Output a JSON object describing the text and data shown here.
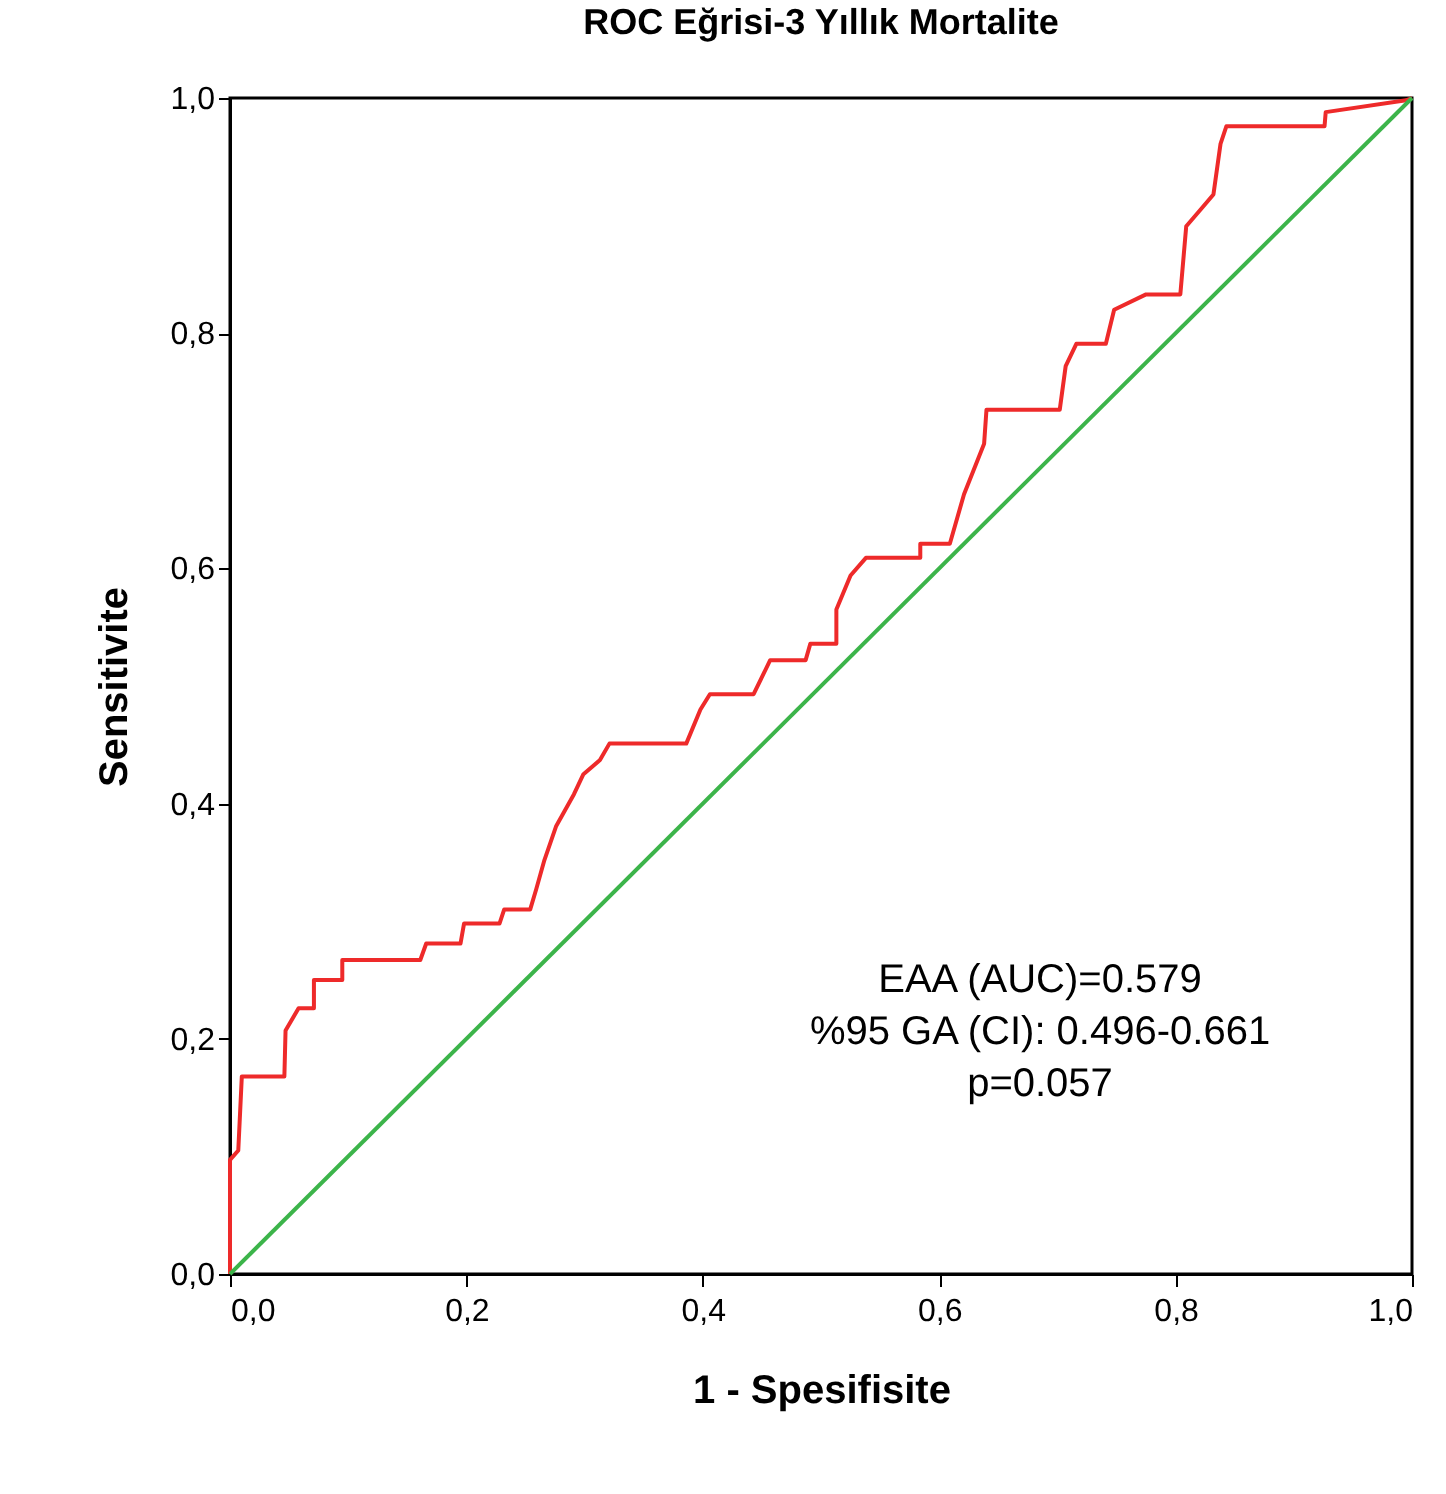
{
  "chart_data": {
    "type": "line",
    "title": "ROC Eğrisi-3 Yıllık Mortalite",
    "xlabel": "1 - Spesifisite",
    "ylabel": "Sensitivite",
    "xlim": [
      0,
      1
    ],
    "ylim": [
      0,
      1
    ],
    "xticks": [
      {
        "value": 0,
        "label": "0,0"
      },
      {
        "value": 0.2,
        "label": "0,2"
      },
      {
        "value": 0.4,
        "label": "0,4"
      },
      {
        "value": 0.6,
        "label": "0,6"
      },
      {
        "value": 0.8,
        "label": "0,8"
      },
      {
        "value": 1,
        "label": "1,0"
      }
    ],
    "yticks": [
      {
        "value": 0,
        "label": "0,0"
      },
      {
        "value": 0.2,
        "label": "0,2"
      },
      {
        "value": 0.4,
        "label": "0,4"
      },
      {
        "value": 0.6,
        "label": "0,6"
      },
      {
        "value": 0.8,
        "label": "0,8"
      },
      {
        "value": 1,
        "label": "1,0"
      }
    ],
    "grid": false,
    "legend": false,
    "marker": "none",
    "line_style": "solid",
    "series": [
      {
        "color": "#ee2a2a",
        "x": [
          0,
          0,
          0.007,
          0.01,
          0.046,
          0.047,
          0.058,
          0.071,
          0.071,
          0.095,
          0.095,
          0.161,
          0.166,
          0.195,
          0.198,
          0.228,
          0.232,
          0.254,
          0.259,
          0.266,
          0.276,
          0.291,
          0.299,
          0.313,
          0.321,
          0.386,
          0.398,
          0.406,
          0.443,
          0.457,
          0.487,
          0.491,
          0.513,
          0.513,
          0.525,
          0.538,
          0.584,
          0.584,
          0.609,
          0.621,
          0.638,
          0.64,
          0.702,
          0.707,
          0.716,
          0.741,
          0.748,
          0.775,
          0.804,
          0.809,
          0.821,
          0.832,
          0.838,
          0.843,
          0.926,
          0.927,
          0.995,
          1
        ],
        "values": [
          0,
          0.097,
          0.105,
          0.168,
          0.168,
          0.207,
          0.226,
          0.226,
          0.25,
          0.25,
          0.267,
          0.267,
          0.281,
          0.281,
          0.298,
          0.298,
          0.31,
          0.31,
          0.327,
          0.352,
          0.381,
          0.408,
          0.425,
          0.437,
          0.451,
          0.451,
          0.48,
          0.493,
          0.493,
          0.522,
          0.522,
          0.536,
          0.536,
          0.565,
          0.594,
          0.609,
          0.609,
          0.621,
          0.621,
          0.663,
          0.706,
          0.735,
          0.735,
          0.772,
          0.791,
          0.791,
          0.82,
          0.833,
          0.833,
          0.891,
          0.905,
          0.918,
          0.961,
          0.976,
          0.976,
          0.988,
          0.998,
          1
        ]
      },
      {
        "color": "#3cb44a",
        "x": [
          0,
          1
        ],
        "values": [
          0,
          1
        ]
      }
    ],
    "annotations": [
      "EAA (AUC)=0.579",
      "%95 GA (CI): 0.496-0.661",
      "p=0.057"
    ]
  }
}
